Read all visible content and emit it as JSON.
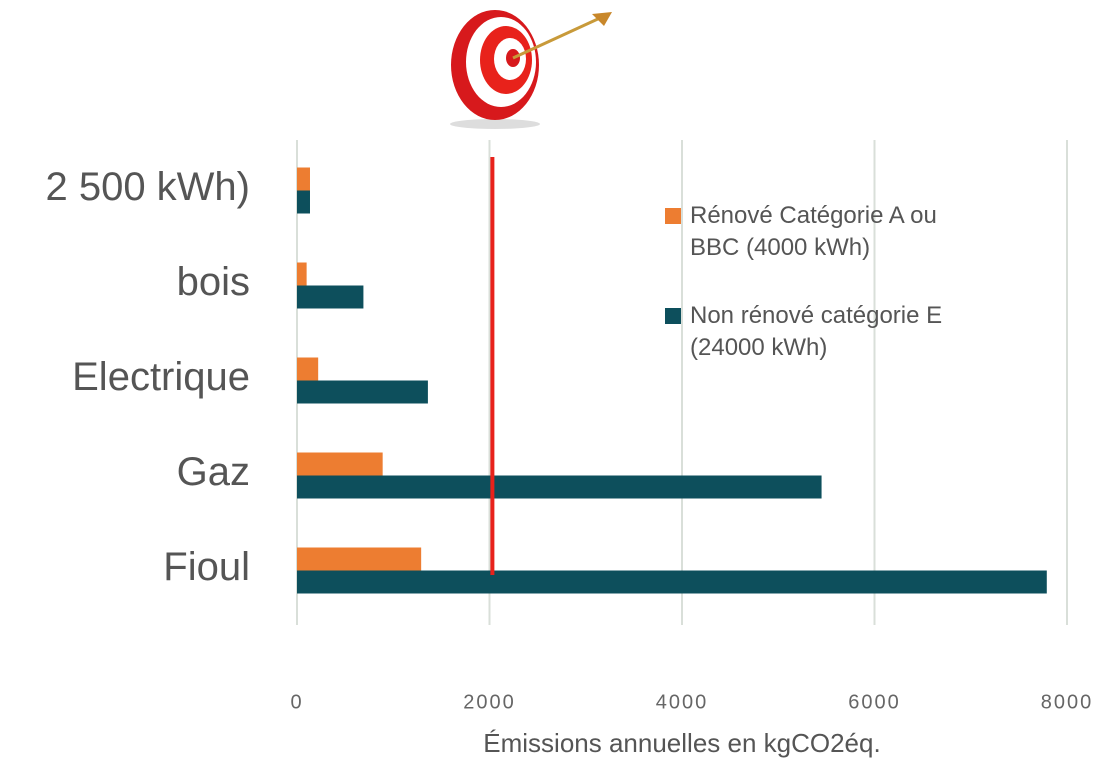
{
  "chart_data": {
    "type": "hbar",
    "categories": [
      "2 500 kWh)",
      "bois",
      "Electrique",
      "Gaz",
      "Fioul"
    ],
    "series": [
      {
        "name": "Rénové Catégorie A ou BBC (4000 kWh)",
        "color": "#ed7d31",
        "values": [
          135,
          100,
          220,
          890,
          1290
        ]
      },
      {
        "name": "Non rénové catégorie E (24000 kWh)",
        "color": "#0d4f5c",
        "values": [
          135,
          690,
          1360,
          5450,
          7790
        ]
      }
    ],
    "xlabel": "Émissions annuelles en kgCO2éq.",
    "xlim": [
      0,
      8000
    ],
    "xticks": [
      0,
      2000,
      4000,
      6000,
      8000
    ],
    "grid": true,
    "reference_line": {
      "value": 2030,
      "color": "#e8221b"
    },
    "legend": "right"
  }
}
